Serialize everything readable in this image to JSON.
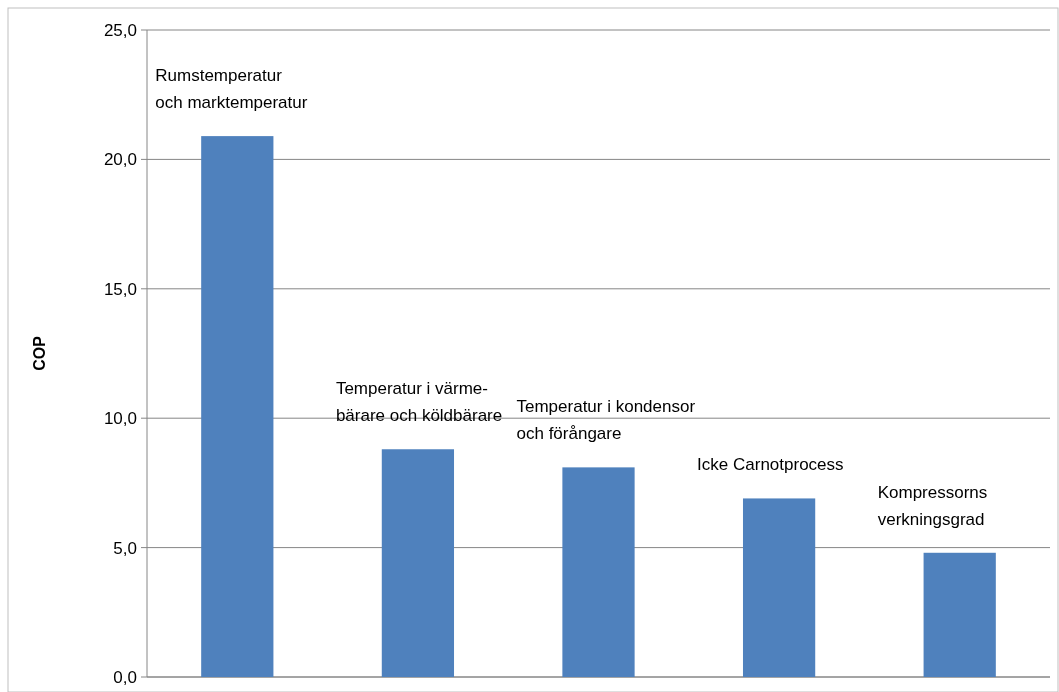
{
  "chart_data": {
    "type": "bar",
    "ylabel": "COP",
    "categories": [
      "Rumstemperatur\noch marktemperatur",
      "Temperatur i värme-\nbärare och köldbärare",
      "Temperatur i kondensor\noch förångare",
      "Icke Carnotprocess",
      "Kompressorns\nverkningsgrad"
    ],
    "values": [
      20.9,
      8.8,
      8.1,
      6.9,
      4.8
    ],
    "color": "#4f81bd",
    "ylim": [
      0,
      25
    ],
    "yticks": [
      {
        "value": 0,
        "label": "0,0"
      },
      {
        "value": 5,
        "label": "5,0"
      },
      {
        "value": 10,
        "label": "10,0"
      },
      {
        "value": 15,
        "label": "15,0"
      },
      {
        "value": 20,
        "label": "20,0"
      },
      {
        "value": 25,
        "label": "25,0"
      }
    ],
    "grid": "y"
  }
}
